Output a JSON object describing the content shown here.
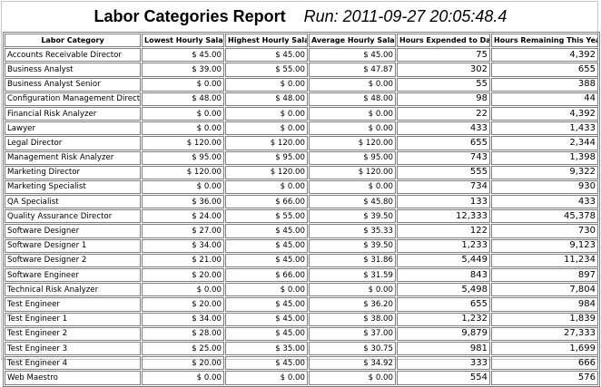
{
  "report": {
    "title": "Labor Categories Report",
    "run_label": "Run: 2011-09-27 20:05:48.4"
  },
  "table": {
    "columns": [
      "Labor Category",
      "Lowest Hourly Salary",
      "Highest Hourly Salary",
      "Average Hourly Salary",
      "Hours Expended to Date",
      "Hours Remaining This Year"
    ],
    "rows": [
      [
        "Accounts Receivable Director",
        "$ 45.00",
        "$ 45.00",
        "$ 45.00",
        "75",
        "4,392"
      ],
      [
        "Business Analyst",
        "$ 39.00",
        "$ 55.00",
        "$ 47.87",
        "302",
        "655"
      ],
      [
        "Business Analyst Senior",
        "$ 0.00",
        "$ 0.00",
        "$ 0.00",
        "55",
        "388"
      ],
      [
        "Configuration Management Director",
        "$ 48.00",
        "$ 48.00",
        "$ 48.00",
        "98",
        "44"
      ],
      [
        "Financial Risk Analyzer",
        "$ 0.00",
        "$ 0.00",
        "$ 0.00",
        "22",
        "4,392"
      ],
      [
        "Lawyer",
        "$ 0.00",
        "$ 0.00",
        "$ 0.00",
        "433",
        "1,433"
      ],
      [
        "Legal Director",
        "$ 120.00",
        "$ 120.00",
        "$ 120.00",
        "655",
        "2,344"
      ],
      [
        "Management Risk Analyzer",
        "$ 95.00",
        "$ 95.00",
        "$ 95.00",
        "743",
        "1,398"
      ],
      [
        "Marketing Director",
        "$ 120.00",
        "$ 120.00",
        "$ 120.00",
        "555",
        "9,322"
      ],
      [
        "Marketing Specialist",
        "$ 0.00",
        "$ 0.00",
        "$ 0.00",
        "734",
        "930"
      ],
      [
        "QA Specialist",
        "$ 36.00",
        "$ 66.00",
        "$ 45.80",
        "133",
        "433"
      ],
      [
        "Quality Assurance Director",
        "$ 24.00",
        "$ 55.00",
        "$ 39.50",
        "12,333",
        "45,378"
      ],
      [
        "Software Designer",
        "$ 27.00",
        "$ 45.00",
        "$ 35.33",
        "122",
        "730"
      ],
      [
        "Software Designer 1",
        "$ 34.00",
        "$ 45.00",
        "$ 39.50",
        "1,233",
        "9,123"
      ],
      [
        "Software Designer 2",
        "$ 21.00",
        "$ 45.00",
        "$ 31.86",
        "5,449",
        "11,234"
      ],
      [
        "Software Engineer",
        "$ 20.00",
        "$ 66.00",
        "$ 31.59",
        "843",
        "897"
      ],
      [
        "Technical Risk Analyzer",
        "$ 0.00",
        "$ 0.00",
        "$ 0.00",
        "5,498",
        "7,804"
      ],
      [
        "Test Engineer",
        "$ 20.00",
        "$ 45.00",
        "$ 36.20",
        "655",
        "984"
      ],
      [
        "Test Engineer 1",
        "$ 34.00",
        "$ 45.00",
        "$ 38.00",
        "1,232",
        "1,839"
      ],
      [
        "Test Engineer 2",
        "$ 28.00",
        "$ 45.00",
        "$ 37.00",
        "9,879",
        "27,333"
      ],
      [
        "Test Engineer 3",
        "$ 25.00",
        "$ 35.00",
        "$ 30.75",
        "981",
        "1,699"
      ],
      [
        "Test Engineer 4",
        "$ 20.00",
        "$ 45.00",
        "$ 34.92",
        "333",
        "666"
      ],
      [
        "Web Maestro",
        "$ 0.00",
        "$ 0.00",
        "$ 0.00",
        "554",
        "576"
      ]
    ]
  }
}
